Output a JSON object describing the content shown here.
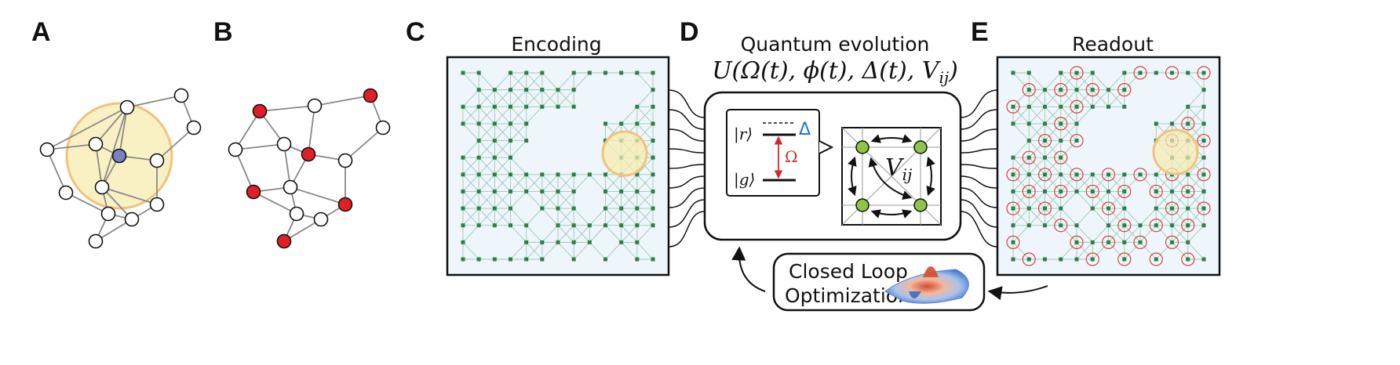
{
  "panels": {
    "a": "A",
    "b": "B",
    "c": "C",
    "d": "D",
    "e": "E"
  },
  "encoding_title": "Encoding",
  "evolution_title": "Quantum evolution",
  "unitary": "U(Ω(t), ϕ(t), Δ(t), V",
  "unitary_sub": "ij",
  "unitary_close": ")",
  "readout_title": "Readout",
  "levels": {
    "rydberg": "|r⟩",
    "ground": "|g⟩",
    "detuning": "Δ",
    "rabi": "Ω"
  },
  "interaction": "V",
  "interaction_sub": "ij",
  "closed_loop": {
    "line1": "Closed Loop",
    "line2": "Optimization"
  },
  "colors": {
    "center_node": "#7b7fc4",
    "solution_node": "#e01f26",
    "blockade_fill": "#f7ecb0",
    "blockade_stroke": "#f1c27d",
    "atom_green": "#8fc44a",
    "lattice_bg": "#eef6fb",
    "detuning_blue": "#1f6fd1",
    "rabi_red": "#d42a2a",
    "readout_ring": "#d94040"
  }
}
